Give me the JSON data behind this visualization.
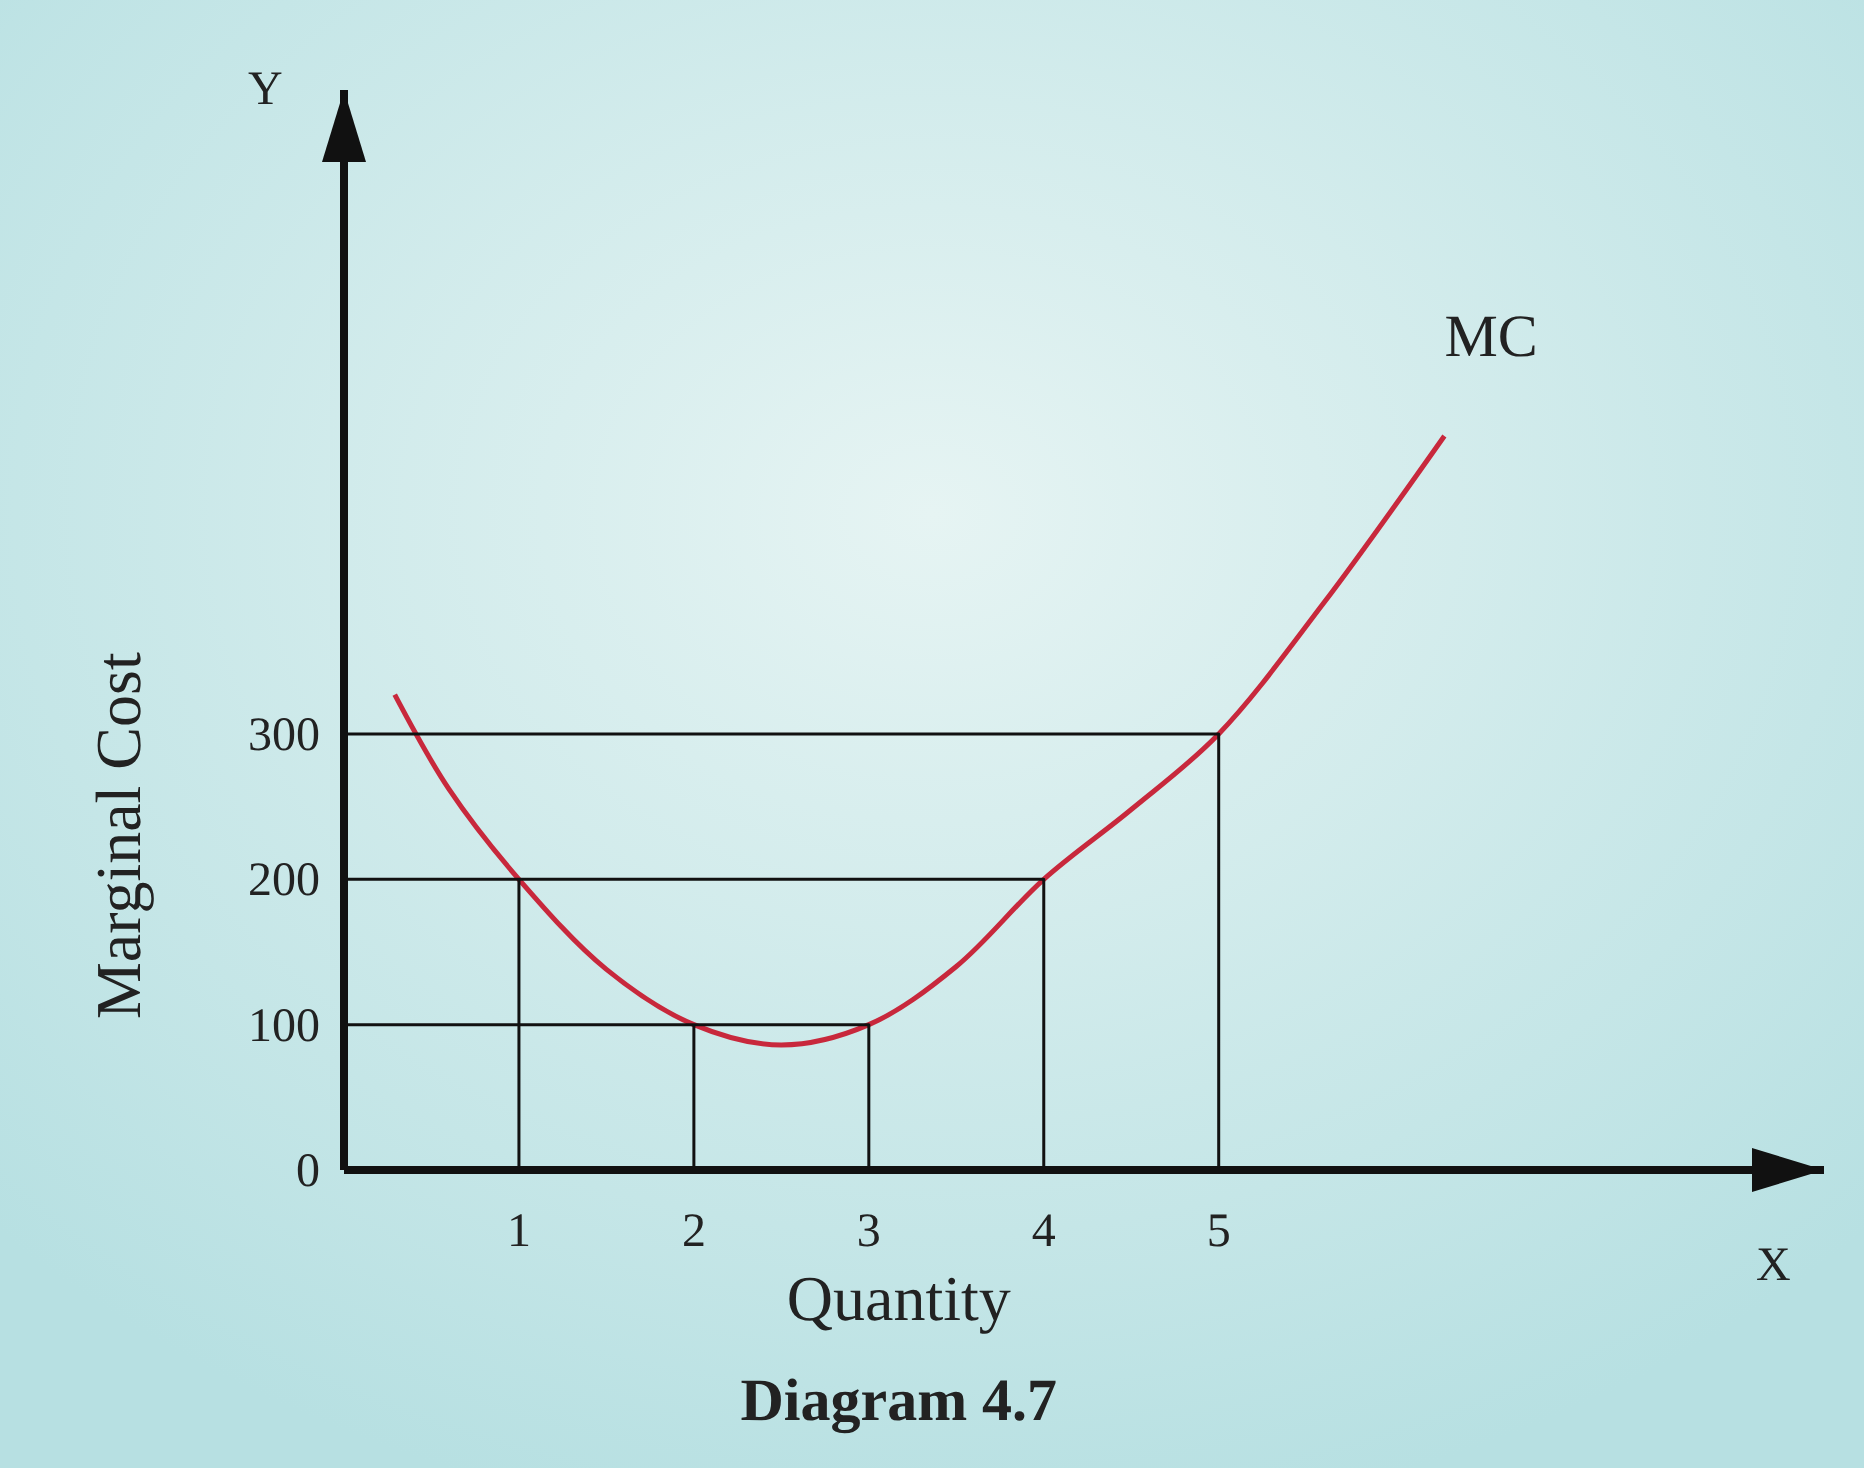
{
  "chart_data": {
    "type": "line",
    "title": "Diagram 4.7",
    "xlabel": "Quantity",
    "ylabel": "Marginal Cost",
    "annotations": [
      "Y",
      "X"
    ],
    "xlim": [
      0,
      8.46
    ],
    "ylim": [
      0,
      743
    ],
    "xticks": [
      1,
      2,
      3,
      4,
      5
    ],
    "yticks": [
      0,
      100,
      200,
      300
    ],
    "series": [
      {
        "name": "MC",
        "color": "#c8283c",
        "x": [
          0.29,
          0.6,
          1,
          1.5,
          2,
          2.5,
          3,
          3.5,
          4,
          4.5,
          5,
          5.6,
          6.29
        ],
        "values": [
          327,
          262,
          200,
          138,
          100,
          86,
          100,
          140,
          200,
          248,
          300,
          390,
          505
        ]
      },
      {
        "color": "#111111",
        "x": [
          0,
          5,
          5
        ],
        "values": [
          300,
          300,
          0
        ]
      },
      {
        "color": "#111111",
        "x": [
          0,
          4,
          4
        ],
        "values": [
          200,
          200,
          0
        ]
      },
      {
        "color": "#111111",
        "x": [
          1,
          1
        ],
        "values": [
          200,
          0
        ]
      },
      {
        "color": "#111111",
        "x": [
          0,
          3,
          3
        ],
        "values": [
          100,
          100,
          0
        ]
      },
      {
        "color": "#111111",
        "x": [
          2,
          2
        ],
        "values": [
          100,
          0
        ]
      }
    ]
  }
}
